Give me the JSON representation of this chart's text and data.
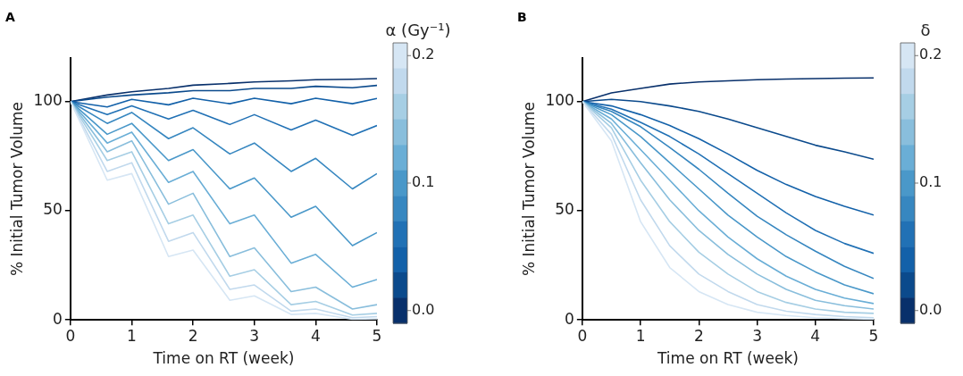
{
  "chart_data": [
    {
      "type": "line",
      "title": "A",
      "xlabel": "Time on RT (week)",
      "ylabel": "% Initial Tumor Volume",
      "clabel": "α (Gy⁻¹)",
      "clim": [
        -0.01,
        0.21
      ],
      "cticks": [
        {
          "value": 0,
          "label": "0.0"
        },
        {
          "value": 0.1,
          "label": "0.1"
        },
        {
          "value": 0.2,
          "label": "0.2"
        }
      ],
      "xlim": [
        0,
        5
      ],
      "ylim": [
        0,
        120
      ],
      "xticks": [
        0,
        1,
        2,
        3,
        4,
        5
      ],
      "yticks": [
        0,
        50,
        100
      ],
      "x": [
        0,
        0.6,
        1,
        1.6,
        2,
        2.6,
        3,
        3.6,
        4,
        4.6,
        5
      ],
      "series": [
        {
          "color": "#d6e6f4",
          "values": [
            100,
            64,
            67,
            29,
            32,
            9,
            11,
            2.5,
            3,
            0.3,
            0.5
          ]
        },
        {
          "color": "#c1d9ed",
          "values": [
            100,
            68,
            72,
            36,
            40,
            14,
            16,
            4,
            5,
            1,
            1.5
          ]
        },
        {
          "color": "#a6cee4",
          "values": [
            100,
            73,
            77,
            44,
            48,
            20,
            23,
            7,
            8.5,
            2.2,
            3
          ]
        },
        {
          "color": "#89bedc",
          "values": [
            100,
            77,
            82,
            53,
            58,
            29,
            33,
            13,
            15,
            5,
            7
          ]
        },
        {
          "color": "#6aaed6",
          "values": [
            100,
            81,
            86,
            63,
            68,
            44,
            48,
            26,
            30,
            15,
            18.5
          ]
        },
        {
          "color": "#4a98c9",
          "values": [
            100,
            85,
            90,
            73,
            78,
            60,
            65,
            47,
            52,
            34,
            40
          ]
        },
        {
          "color": "#3787c0",
          "values": [
            100,
            90,
            95,
            83,
            88,
            76,
            81,
            68,
            74,
            60,
            67
          ]
        },
        {
          "color": "#2171b5",
          "values": [
            100,
            94,
            98,
            92,
            96,
            89.5,
            94,
            87,
            91.5,
            84.5,
            89
          ]
        },
        {
          "color": "#1361a9",
          "values": [
            100,
            97.5,
            101,
            98.5,
            101.5,
            99,
            101.5,
            99,
            101.5,
            99,
            101.4
          ]
        },
        {
          "color": "#0b4a8c",
          "values": [
            100,
            102,
            103,
            104,
            105,
            105,
            106,
            106,
            107,
            106.3,
            107.4
          ]
        },
        {
          "color": "#08306b",
          "values": [
            100,
            103,
            104.5,
            106,
            107.5,
            108.3,
            109,
            109.5,
            110,
            110.2,
            110.5
          ]
        }
      ]
    },
    {
      "type": "line",
      "title": "B",
      "xlabel": "Time on RT (week)",
      "ylabel": "% Initial Tumor Volume",
      "clabel": "δ",
      "clim": [
        -0.01,
        0.21
      ],
      "cticks": [
        {
          "value": 0,
          "label": "0.0"
        },
        {
          "value": 0.1,
          "label": "0.1"
        },
        {
          "value": 0.2,
          "label": "0.2"
        }
      ],
      "xlim": [
        0,
        5
      ],
      "ylim": [
        0,
        120
      ],
      "xticks": [
        0,
        1,
        2,
        3,
        4,
        5
      ],
      "yticks": [
        0,
        50,
        100
      ],
      "x": [
        0,
        0.5,
        1,
        1.5,
        2,
        2.5,
        3,
        3.5,
        4,
        4.5,
        5
      ],
      "series": [
        {
          "color": "#d6e6f4",
          "values": [
            100,
            82,
            45,
            24,
            13,
            7,
            3.5,
            2,
            1,
            0.6,
            0.3
          ]
        },
        {
          "color": "#c1d9ed",
          "values": [
            100,
            85,
            55,
            34,
            21,
            13,
            7,
            4,
            2.5,
            1.5,
            1
          ]
        },
        {
          "color": "#a6cee4",
          "values": [
            100,
            88,
            64,
            45,
            31,
            21,
            13,
            8,
            5,
            3.5,
            3
          ]
        },
        {
          "color": "#89bedc",
          "values": [
            100,
            90,
            72,
            55,
            41,
            30,
            21,
            14,
            9,
            6.5,
            5
          ]
        },
        {
          "color": "#6aaed6",
          "values": [
            100,
            92,
            78,
            64,
            50,
            38,
            28,
            20,
            14,
            10,
            7.5
          ]
        },
        {
          "color": "#4a98c9",
          "values": [
            100,
            94,
            84,
            72,
            60,
            48,
            38,
            29,
            22,
            16,
            12
          ]
        },
        {
          "color": "#3787c0",
          "values": [
            100,
            95.5,
            88.5,
            79,
            69,
            58,
            47.5,
            39,
            31.5,
            24.5,
            19
          ]
        },
        {
          "color": "#2171b5",
          "values": [
            100,
            96.5,
            90.5,
            84,
            76,
            67,
            58,
            49,
            41,
            35,
            30.5
          ]
        },
        {
          "color": "#1361a9",
          "values": [
            100,
            98,
            94,
            89,
            83,
            76,
            68.5,
            62,
            56.5,
            52,
            48
          ]
        },
        {
          "color": "#0b4a8c",
          "values": [
            100,
            101,
            100,
            98,
            95.5,
            92,
            88,
            84,
            80,
            77,
            73.6
          ]
        },
        {
          "color": "#08306b",
          "values": [
            100,
            104,
            106,
            108,
            109,
            109.5,
            110,
            110.3,
            110.5,
            110.7,
            110.8
          ]
        }
      ]
    }
  ]
}
